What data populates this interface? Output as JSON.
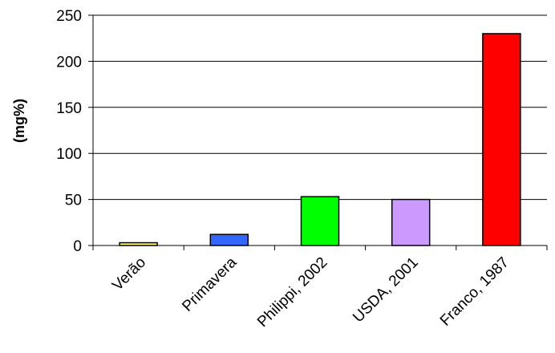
{
  "chart_data": {
    "type": "bar",
    "title": "",
    "xlabel": "",
    "ylabel": "(mg%)",
    "ylim": [
      0,
      250
    ],
    "yticks": [
      0,
      50,
      100,
      150,
      200,
      250
    ],
    "grid": true,
    "categories": [
      "Verão",
      "Primavera",
      "Philippi, 2002",
      "USDA, 2001",
      "Franco, 1987"
    ],
    "values": [
      3,
      12,
      53,
      50,
      230
    ],
    "colors": [
      "#ffff66",
      "#3366ff",
      "#00ff00",
      "#cc99ff",
      "#ff0000"
    ]
  }
}
